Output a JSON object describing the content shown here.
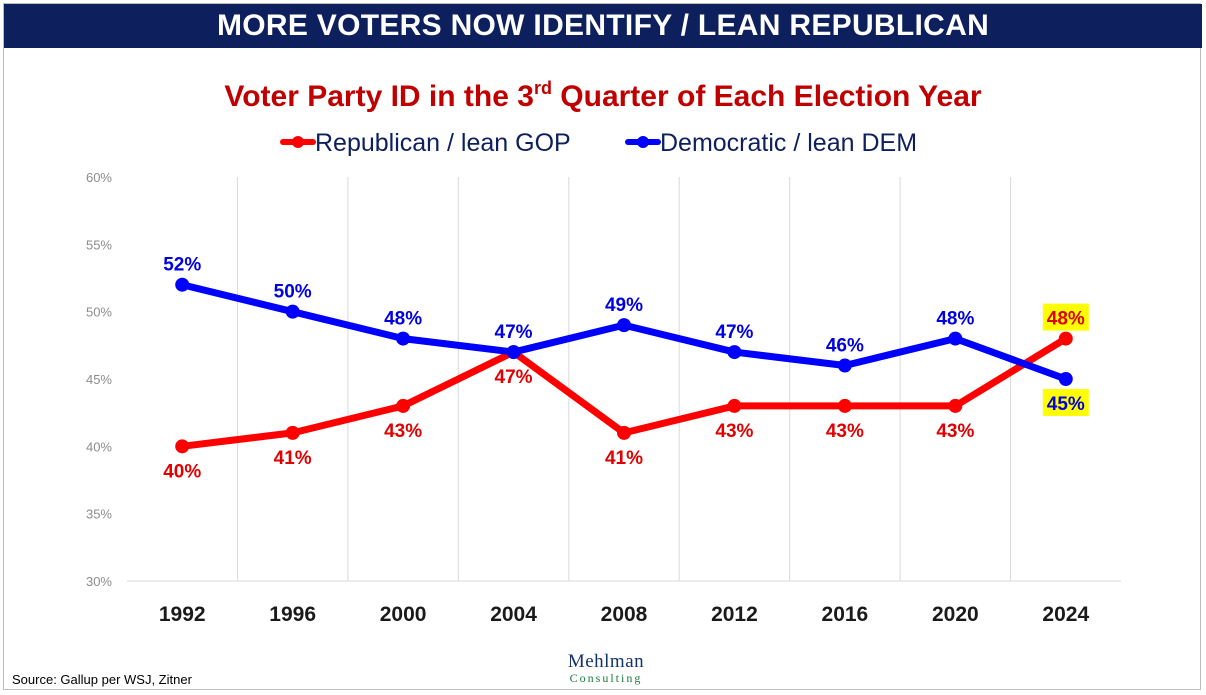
{
  "banner": "MORE VOTERS NOW IDENTIFY / LEAN REPUBLICAN",
  "source": "Source: Gallup per WSJ, Zitner",
  "logo": {
    "top": "Mehlman",
    "bottom": "Consulting"
  },
  "chart_data": {
    "type": "line",
    "title_main": "Voter Party ID in the 3",
    "title_sup": "rd",
    "title_rest": " Quarter of Each Election Year",
    "categories": [
      "1992",
      "1996",
      "2000",
      "2004",
      "2008",
      "2012",
      "2016",
      "2020",
      "2024"
    ],
    "yticks": [
      "30%",
      "35%",
      "40%",
      "45%",
      "50%",
      "55%",
      "60%"
    ],
    "ylim": [
      30,
      60
    ],
    "grid": "vertical",
    "legend_position": "top",
    "series": [
      {
        "name": "Republican / lean GOP",
        "color": "#ff0000",
        "label_color": "#e00000",
        "values": [
          40,
          41,
          43,
          47,
          41,
          43,
          43,
          43,
          48
        ],
        "labels": [
          "40%",
          "41%",
          "43%",
          "47%",
          "41%",
          "43%",
          "43%",
          "43%",
          "48%"
        ]
      },
      {
        "name": "Democratic / lean DEM",
        "color": "#0000ff",
        "label_color": "#0000e0",
        "values": [
          52,
          50,
          48,
          47,
          49,
          47,
          46,
          48,
          45
        ],
        "labels": [
          "52%",
          "50%",
          "48%",
          "47%",
          "49%",
          "47%",
          "46%",
          "48%",
          "45%"
        ]
      }
    ],
    "highlight_color": "#ffff00"
  }
}
